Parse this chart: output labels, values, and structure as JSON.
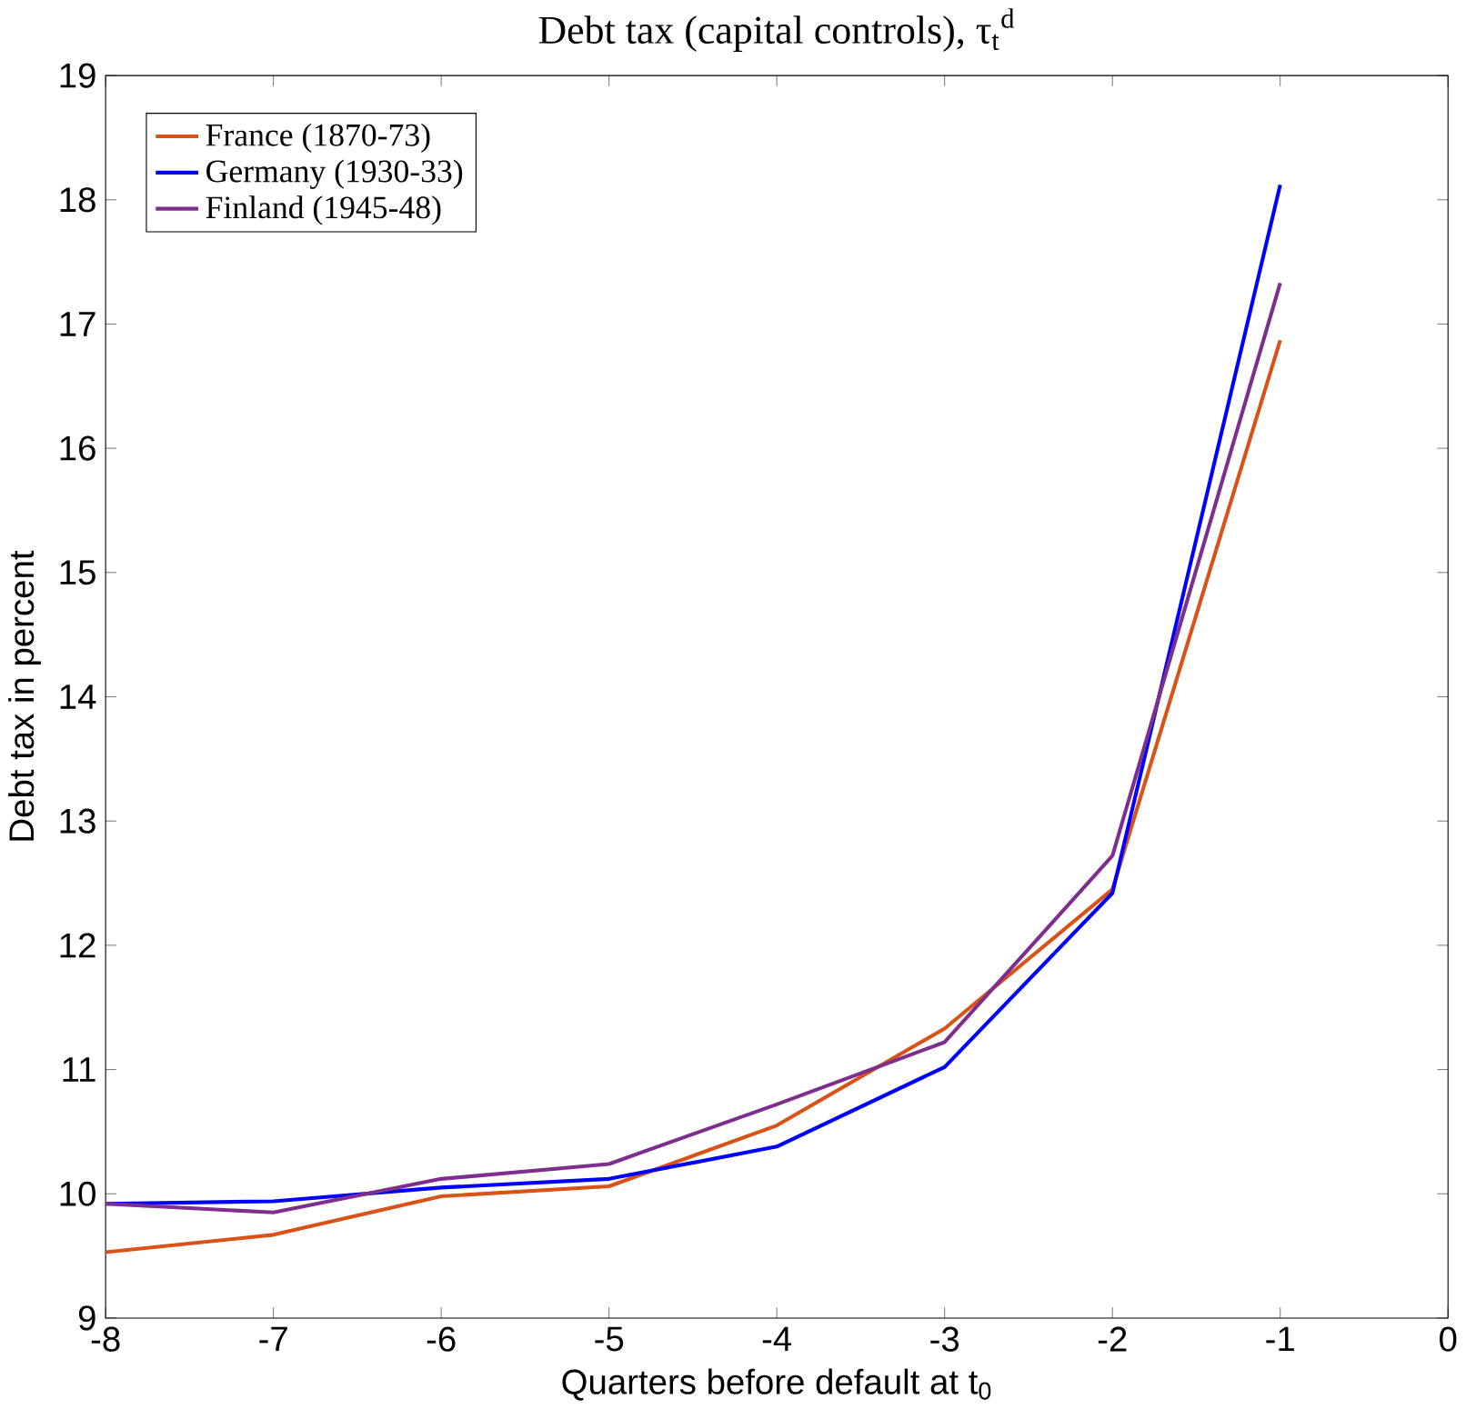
{
  "chart_data": {
    "type": "line",
    "title": "Debt tax (capital controls), τ$_{t}$$^{d}$",
    "xlabel": "Quarters before default at t$_{0}$",
    "ylabel": "Debt tax in percent",
    "x": [
      -8,
      -7,
      -6,
      -5,
      -4,
      -3,
      -2,
      -1
    ],
    "series": [
      {
        "name": "France (1870-73)",
        "color": "#d95319",
        "values": [
          9.53,
          9.67,
          9.98,
          10.06,
          10.55,
          11.33,
          12.45,
          16.87
        ]
      },
      {
        "name": "Germany (1930-33)",
        "color": "#0000ff",
        "values": [
          9.92,
          9.94,
          10.05,
          10.12,
          10.38,
          11.02,
          12.42,
          18.12
        ]
      },
      {
        "name": "Finland (1945-48)",
        "color": "#7e2f8e",
        "values": [
          9.92,
          9.85,
          10.12,
          10.24,
          10.72,
          11.22,
          12.72,
          17.33
        ]
      }
    ],
    "xlim": [
      -8,
      0
    ],
    "xticks": [
      -8,
      -7,
      -6,
      -5,
      -4,
      -3,
      -2,
      -1,
      0
    ],
    "ylim": [
      9,
      19
    ],
    "yticks": [
      9,
      10,
      11,
      12,
      13,
      14,
      15,
      16,
      17,
      18,
      19
    ],
    "legend": "top left",
    "grid": false,
    "marker": "none",
    "line_style": "solid"
  }
}
